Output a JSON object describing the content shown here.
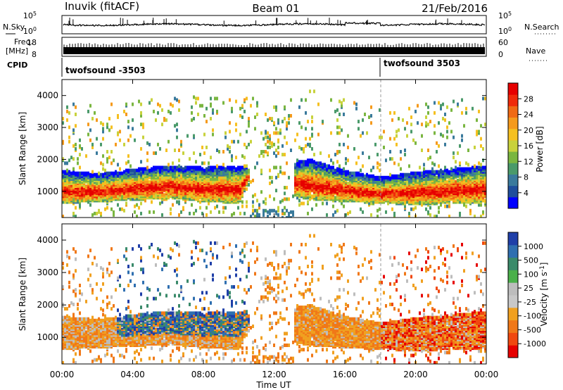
{
  "header": {
    "station": "Inuvik (fitACF)",
    "beam": "Beam 01",
    "date": "21/Feb/2016"
  },
  "top_panels": {
    "nsky": {
      "label": "N.Sky",
      "ticks": [
        "10^5",
        "10^0"
      ],
      "right_label": "N.Search",
      "right_ticks": [
        "10^5",
        "10^0"
      ]
    },
    "freq": {
      "label_line1": "Freq.",
      "label_line2": "[MHz]",
      "ticks": [
        "18",
        "8"
      ],
      "right_label": "Nave",
      "right_ticks": [
        "60",
        "0"
      ]
    },
    "cpid": {
      "label": "CPID",
      "segments": [
        "twofsound -3503",
        "twofsound 3503"
      ]
    }
  },
  "colors": {
    "power_scale": [
      "#0000ff",
      "#1f4e9c",
      "#3a7a9c",
      "#4a9a6a",
      "#7ab640",
      "#c8d23c",
      "#f5c020",
      "#f59a1c",
      "#f06a14",
      "#f02a0a",
      "#e60000"
    ],
    "velocity_scale": [
      "#1f3fa8",
      "#2f6fb0",
      "#3a8a6a",
      "#4ab04a",
      "#bdbdbd",
      "#c8c8c8",
      "#f0a020",
      "#f07818",
      "#f04810",
      "#e60000"
    ]
  },
  "chart_data": [
    {
      "type": "heatmap",
      "name": "Power",
      "ylabel": "Slant Range [km]",
      "xlabel": "Time UT",
      "x_ticks": [
        "00:00",
        "04:00",
        "08:00",
        "12:00",
        "16:00",
        "20:00",
        "00:00"
      ],
      "y_ticks": [
        1000,
        2000,
        3000,
        4000
      ],
      "ylim": [
        180,
        4500
      ],
      "colorbar": {
        "label": "Power [dB]",
        "ticks": [
          4,
          8,
          12,
          16,
          20,
          24,
          28
        ]
      },
      "approx_profile": {
        "hours": [
          0,
          2,
          4,
          6,
          8,
          10,
          11,
          12,
          13,
          14,
          16,
          18,
          20,
          22,
          24
        ],
        "lower_km": [
          650,
          700,
          750,
          800,
          700,
          650,
          2000,
          4000,
          900,
          750,
          700,
          650,
          600,
          650,
          650
        ],
        "upper_km": [
          1650,
          1550,
          1700,
          1800,
          1750,
          1800,
          1700,
          1000,
          1900,
          2000,
          1650,
          1450,
          1600,
          1700,
          1800
        ]
      }
    },
    {
      "type": "heatmap",
      "name": "Velocity",
      "ylabel": "Slant Range [km]",
      "xlabel": "Time UT",
      "x_ticks": [
        "00:00",
        "04:00",
        "08:00",
        "12:00",
        "16:00",
        "20:00",
        "00:00"
      ],
      "y_ticks": [
        1000,
        2000,
        3000,
        4000
      ],
      "ylim": [
        180,
        4500
      ],
      "colorbar": {
        "label": "Velocity [m s^-1]",
        "ticks": [
          1000,
          500,
          100,
          25,
          -25,
          -100,
          -500,
          -1000
        ]
      }
    }
  ]
}
